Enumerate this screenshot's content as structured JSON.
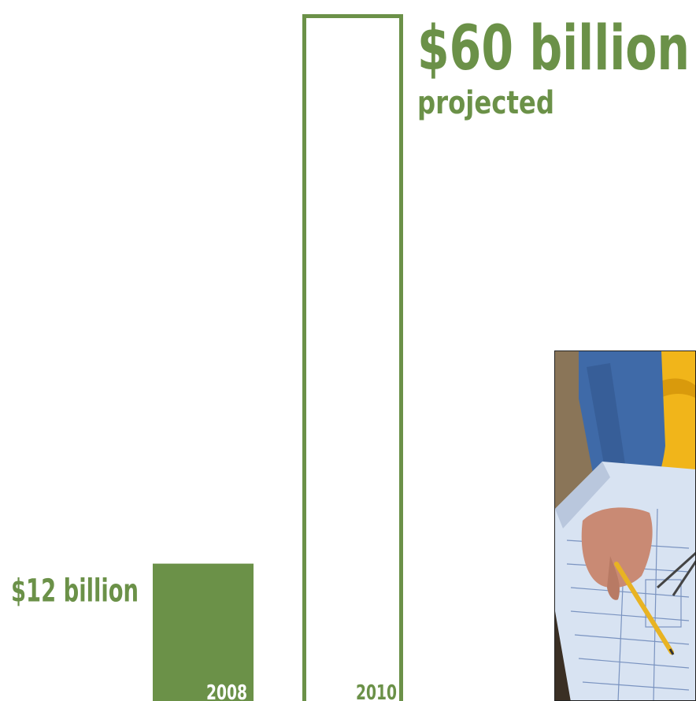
{
  "chart_data": {
    "type": "bar",
    "categories": [
      "2008",
      "2010"
    ],
    "values": [
      12,
      60
    ],
    "value_labels": [
      "$12 billion",
      "$60 billion"
    ],
    "value_sublabels": [
      "",
      "projected"
    ],
    "bar_styles": [
      "filled",
      "outline"
    ],
    "color": "#6b9148",
    "ylim": [
      0,
      60
    ]
  },
  "photo": {
    "icon": "construction-blueprint-photo"
  }
}
